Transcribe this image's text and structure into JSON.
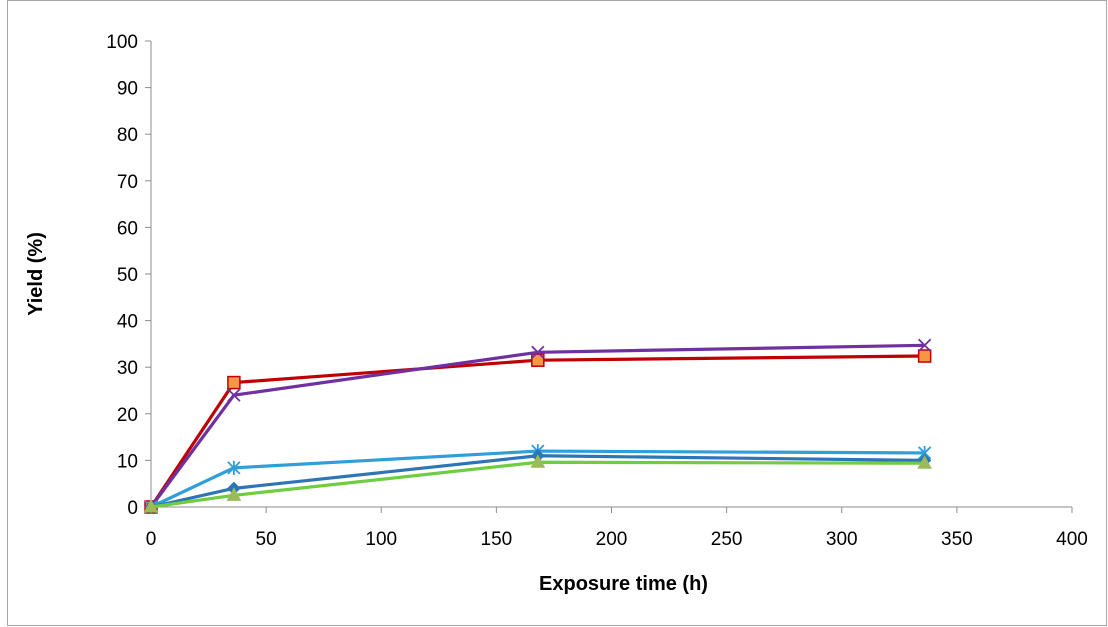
{
  "chart_data": {
    "type": "line",
    "title": "",
    "xlabel": "Exposure time (h)",
    "ylabel": "Yield (%)",
    "xlim": [
      0,
      400
    ],
    "ylim": [
      0,
      100
    ],
    "x_ticks": [
      "0",
      "50",
      "100",
      "150",
      "200",
      "250",
      "300",
      "350",
      "400"
    ],
    "y_ticks": [
      "0",
      "10",
      "20",
      "30",
      "40",
      "50",
      "60",
      "70",
      "80",
      "90",
      "100"
    ],
    "grid": false,
    "legend": "none",
    "x": [
      0,
      36,
      168,
      336
    ],
    "series": [
      {
        "values": [
          0,
          26.7,
          31.5,
          32.4
        ],
        "color": "#c00000",
        "marker": "square",
        "marker_fill": "#f79646"
      },
      {
        "values": [
          0,
          24.0,
          33.2,
          34.7
        ],
        "color": "#7030a0",
        "marker": "x",
        "marker_fill": "#7030a0"
      },
      {
        "values": [
          0,
          8.4,
          12.0,
          11.6
        ],
        "color": "#2e9fd8",
        "marker": "star",
        "marker_fill": "#2e9fd8"
      },
      {
        "values": [
          0,
          4.0,
          11.0,
          10.0
        ],
        "color": "#2e75b6",
        "marker": "diamond",
        "marker_fill": "#2e75b6"
      },
      {
        "values": [
          0,
          2.5,
          9.6,
          9.4
        ],
        "color": "#70cc40",
        "marker": "triangle",
        "marker_fill": "#9bbb59"
      }
    ]
  }
}
